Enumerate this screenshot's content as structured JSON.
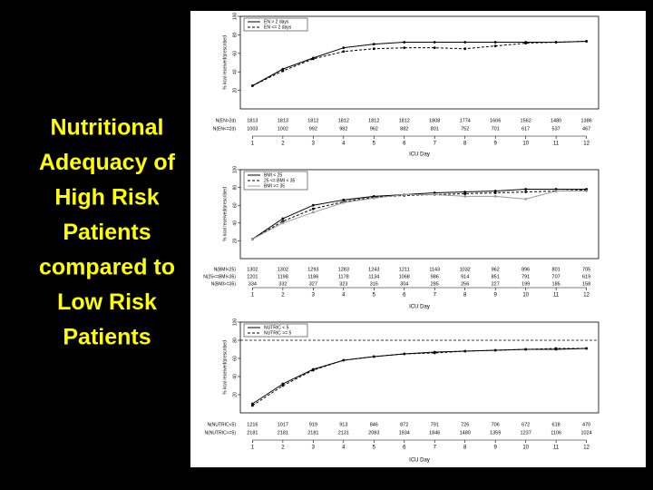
{
  "slide_title_lines": [
    "Nutritional",
    "Adequacy of",
    "High Risk",
    "Patients",
    "compared to",
    "Low Risk",
    "Patients"
  ],
  "chart_data": [
    {
      "type": "line",
      "xlabel": "ICU Day",
      "ylabel": "% kcal received/prescribed",
      "x": [
        1,
        2,
        3,
        4,
        5,
        6,
        7,
        8,
        9,
        10,
        11,
        12
      ],
      "xlim": [
        0.6,
        12.4
      ],
      "xticks": [
        1,
        2,
        3,
        4,
        5,
        6,
        7,
        8,
        9,
        10,
        11,
        12
      ],
      "ylim": [
        0,
        100
      ],
      "yticks": [
        20,
        40,
        60,
        80,
        100
      ],
      "legend": "top-left",
      "series": [
        {
          "name": "EN > 2 days",
          "color": "#000000",
          "dash": false,
          "values": [
            25,
            43,
            55,
            66,
            70,
            72,
            72,
            72,
            72,
            72,
            72,
            73
          ]
        },
        {
          "name": "EN <= 2 days",
          "color": "#000000",
          "dash": true,
          "values": [
            25,
            41,
            54,
            62,
            65,
            66,
            66,
            65,
            68,
            71,
            72,
            73
          ]
        }
      ],
      "risk_table": [
        {
          "label": "N(EN>2d)",
          "values": [
            1813,
            1813,
            1812,
            1812,
            1812,
            1812,
            1808,
            1774,
            1606,
            1562,
            1480,
            1386
          ]
        },
        {
          "label": "N(EN<=2d)",
          "values": [
            1003,
            1002,
            992,
            982,
            962,
            882,
            801,
            752,
            701,
            617,
            537,
            467
          ]
        }
      ]
    },
    {
      "type": "line",
      "xlabel": "ICU Day",
      "ylabel": "% kcal received/prescribed",
      "x": [
        1,
        2,
        3,
        4,
        5,
        6,
        7,
        8,
        9,
        10,
        11,
        12
      ],
      "xlim": [
        0.6,
        12.4
      ],
      "xticks": [
        1,
        2,
        3,
        4,
        5,
        6,
        7,
        8,
        9,
        10,
        11,
        12
      ],
      "ylim": [
        0,
        100
      ],
      "yticks": [
        20,
        40,
        60,
        80,
        100
      ],
      "legend": "top-left",
      "series": [
        {
          "name": "BMI < 25",
          "color": "#000000",
          "dash": false,
          "values": [
            22,
            45,
            60,
            66,
            70,
            72,
            74,
            75,
            76,
            78,
            78,
            78
          ]
        },
        {
          "name": "25 <= BMI < 35",
          "color": "#000000",
          "dash": true,
          "values": [
            22,
            42,
            56,
            64,
            69,
            71,
            72,
            73,
            74,
            75,
            76,
            77
          ]
        },
        {
          "name": "BMI >= 35",
          "color": "#999999",
          "dash": false,
          "values": [
            22,
            40,
            52,
            63,
            68,
            72,
            72,
            70,
            70,
            67,
            76,
            76
          ]
        }
      ],
      "risk_table": [
        {
          "label": "N(BMI<25)",
          "values": [
            1302,
            1302,
            1293,
            1283,
            1243,
            1211,
            1143,
            1032,
            962,
            896,
            801,
            705
          ]
        },
        {
          "label": "N(25<=BMI<35)",
          "values": [
            1201,
            1198,
            1186,
            1178,
            1134,
            1068,
            986,
            914,
            851,
            791,
            707,
            619
          ]
        },
        {
          "label": "N(BMI>=35)",
          "values": [
            334,
            332,
            327,
            323,
            316,
            304,
            285,
            256,
            227,
            199,
            185,
            158
          ]
        }
      ]
    },
    {
      "type": "line",
      "xlabel": "ICU Day",
      "ylabel": "% kcal received/prescribed",
      "x": [
        1,
        2,
        3,
        4,
        5,
        6,
        7,
        8,
        9,
        10,
        11,
        12
      ],
      "xlim": [
        0.6,
        12.4
      ],
      "xticks": [
        1,
        2,
        3,
        4,
        5,
        6,
        7,
        8,
        9,
        10,
        11,
        12
      ],
      "ylim": [
        0,
        100
      ],
      "yticks": [
        20,
        40,
        60,
        80,
        100
      ],
      "legend": "top-left",
      "reference_line": 80,
      "series": [
        {
          "name": "NUTRIC < 5",
          "color": "#000000",
          "dash": false,
          "values": [
            10,
            32,
            48,
            58,
            62,
            65,
            67,
            68,
            69,
            70,
            70,
            71
          ]
        },
        {
          "name": "NUTRIC >= 5",
          "color": "#000000",
          "dash": true,
          "values": [
            8,
            30,
            47,
            58,
            62,
            65,
            66,
            68,
            69,
            70,
            71,
            71
          ]
        }
      ],
      "risk_table": [
        {
          "label": "N(NUTRIC<5)",
          "values": [
            1216,
            1017,
            919,
            913,
            846,
            872,
            791,
            726,
            706,
            672,
            618,
            470
          ]
        },
        {
          "label": "N(NUTRIC>=5)",
          "values": [
            2181,
            2181,
            2181,
            2131,
            2083,
            1934,
            1846,
            1480,
            1359,
            1237,
            1106,
            1024
          ]
        }
      ]
    }
  ]
}
